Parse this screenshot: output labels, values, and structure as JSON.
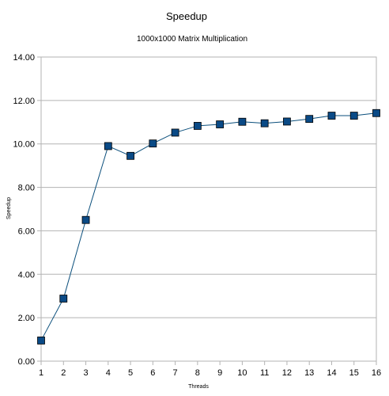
{
  "chart_data": {
    "type": "line",
    "title": "Speedup",
    "subtitle": "1000x1000 Matrix Multiplication",
    "xlabel": "Threads",
    "ylabel": "Speedup",
    "x": [
      1,
      2,
      3,
      4,
      5,
      6,
      7,
      8,
      9,
      10,
      11,
      12,
      13,
      14,
      15,
      16
    ],
    "x_tick_labels": [
      "1",
      "2",
      "3",
      "4",
      "5",
      "6",
      "7",
      "8",
      "9",
      "10",
      "11",
      "12",
      "13",
      "14",
      "15",
      "16"
    ],
    "series": [
      {
        "values": [
          0.95,
          2.88,
          6.5,
          9.9,
          9.45,
          10.02,
          10.52,
          10.83,
          10.9,
          11.02,
          10.95,
          11.03,
          11.15,
          11.3,
          11.3,
          11.42
        ]
      }
    ],
    "ylim": [
      0,
      14
    ],
    "y_ticks": [
      0,
      2,
      4,
      6,
      8,
      10,
      12,
      14
    ],
    "y_tick_labels": [
      "0.00",
      "2.00",
      "4.00",
      "6.00",
      "8.00",
      "10.00",
      "12.00",
      "14.00"
    ],
    "grid": "horizontal",
    "legend": "none",
    "colors": {
      "line": "#0b4f7c",
      "marker_fill": "#0a4a86",
      "marker_stroke": "#000000",
      "grid": "#b3b3b3",
      "axis": "#b3b3b3"
    }
  }
}
